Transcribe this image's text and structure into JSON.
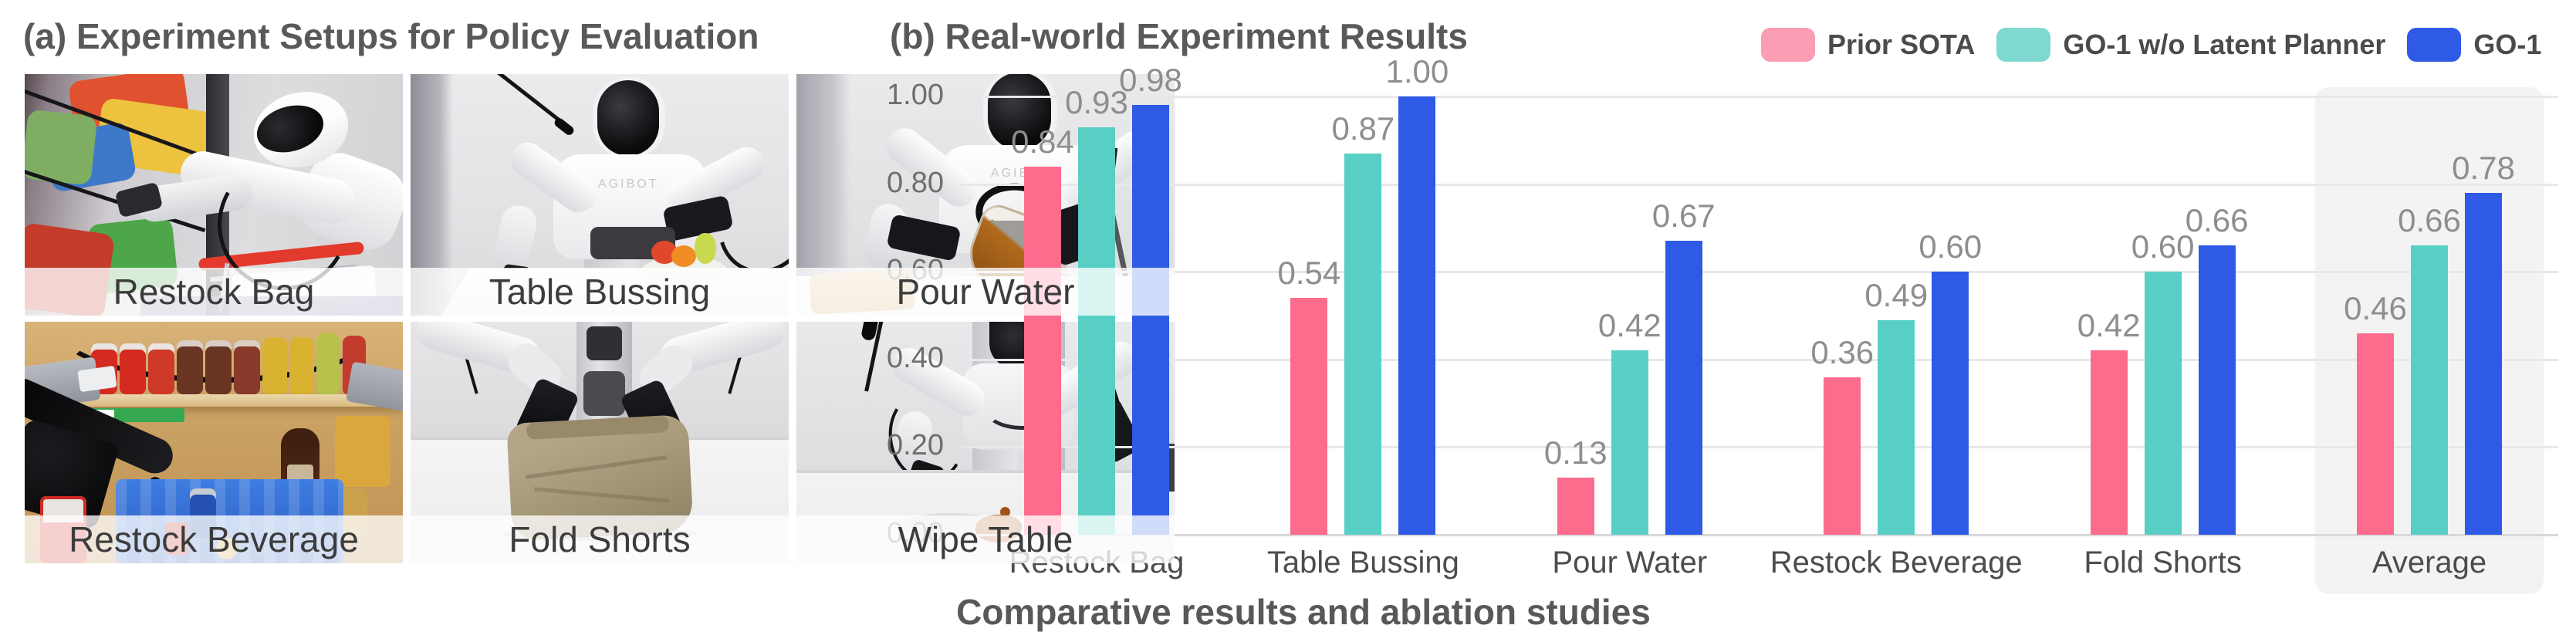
{
  "panel_a": {
    "title": "(a) Experiment Setups for Policy Evaluation",
    "robot_brand": "AGIBOT",
    "photos": [
      {
        "label": "Restock Bag"
      },
      {
        "label": "Table Bussing"
      },
      {
        "label": "Pour Water"
      },
      {
        "label": "Restock Beverage"
      },
      {
        "label": "Fold Shorts"
      },
      {
        "label": "Wipe Table"
      }
    ]
  },
  "panel_b": {
    "title": "(b) Real-world Experiment Results",
    "caption": "Comparative results and ablation studies",
    "legend": [
      {
        "label": "Prior SOTA",
        "color": "#fb9db3"
      },
      {
        "label": "GO-1 w/o Latent Planner",
        "color": "#7fd9d0"
      },
      {
        "label": "GO-1",
        "color": "#2e5ae6"
      }
    ]
  },
  "chart_data": {
    "type": "bar",
    "title": "(b) Real-world Experiment Results",
    "categories": [
      "Restock Bag",
      "Table Bussing",
      "Pour Water",
      "Restock Beverage",
      "Fold Shorts",
      "Average"
    ],
    "series": [
      {
        "name": "Prior SOTA",
        "color": "#fd6b8d",
        "values": [
          0.84,
          0.54,
          0.13,
          0.36,
          0.42,
          0.46
        ]
      },
      {
        "name": "GO-1 w/o Latent Planner",
        "color": "#57cfc5",
        "values": [
          0.93,
          0.87,
          0.42,
          0.49,
          0.6,
          0.66
        ]
      },
      {
        "name": "GO-1",
        "color": "#2e5ae6",
        "values": [
          0.98,
          1.0,
          0.67,
          0.6,
          0.66,
          0.78
        ]
      }
    ],
    "xlabel": "",
    "ylabel": "",
    "ylim": [
      0,
      1.0
    ],
    "yticks": [
      0,
      0.2,
      0.4,
      0.6,
      0.8,
      1.0
    ],
    "grid": "horizontal",
    "legend_position": "top-right",
    "highlight_category": "Average",
    "bar_value_labels": true,
    "colors": {
      "grid": "#e8e8ea",
      "baseline": "#d9d9dc",
      "highlight_band": "#f3f3f4",
      "value_label": "#8e8e8e",
      "tick_label": "#6e6e6e",
      "category_label": "#4c4c4c"
    }
  }
}
